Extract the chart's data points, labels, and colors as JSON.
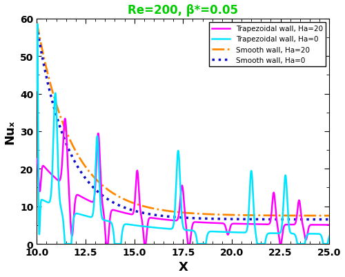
{
  "title": "Re=200, β*=0.05",
  "title_color": "#00cc00",
  "xlabel": "X",
  "ylabel": "Nuₓ",
  "xlim": [
    10.0,
    25.0
  ],
  "ylim": [
    0,
    60
  ],
  "xticks": [
    10.0,
    12.5,
    15.0,
    17.5,
    20.0,
    22.5,
    25.0
  ],
  "yticks": [
    0,
    10,
    20,
    30,
    40,
    50,
    60
  ],
  "legend_entries": [
    {
      "label": "Trapezoidal wall, Ha=20",
      "color": "#ff00ff",
      "ls": "solid",
      "lw": 1.8
    },
    {
      "label": "Trapezoidal wall, Ha=0",
      "color": "#00e5ff",
      "ls": "solid",
      "lw": 1.8
    },
    {
      "label": "Smooth wall, Ha=20",
      "color": "#ff8800",
      "ls": "dashdot",
      "lw": 2.0
    },
    {
      "label": "Smooth wall, Ha=0",
      "color": "#1010cc",
      "ls": "dotted",
      "lw": 2.5
    }
  ],
  "bg_color": "#ffffff",
  "figsize": [
    5.0,
    4.02
  ],
  "dpi": 100
}
